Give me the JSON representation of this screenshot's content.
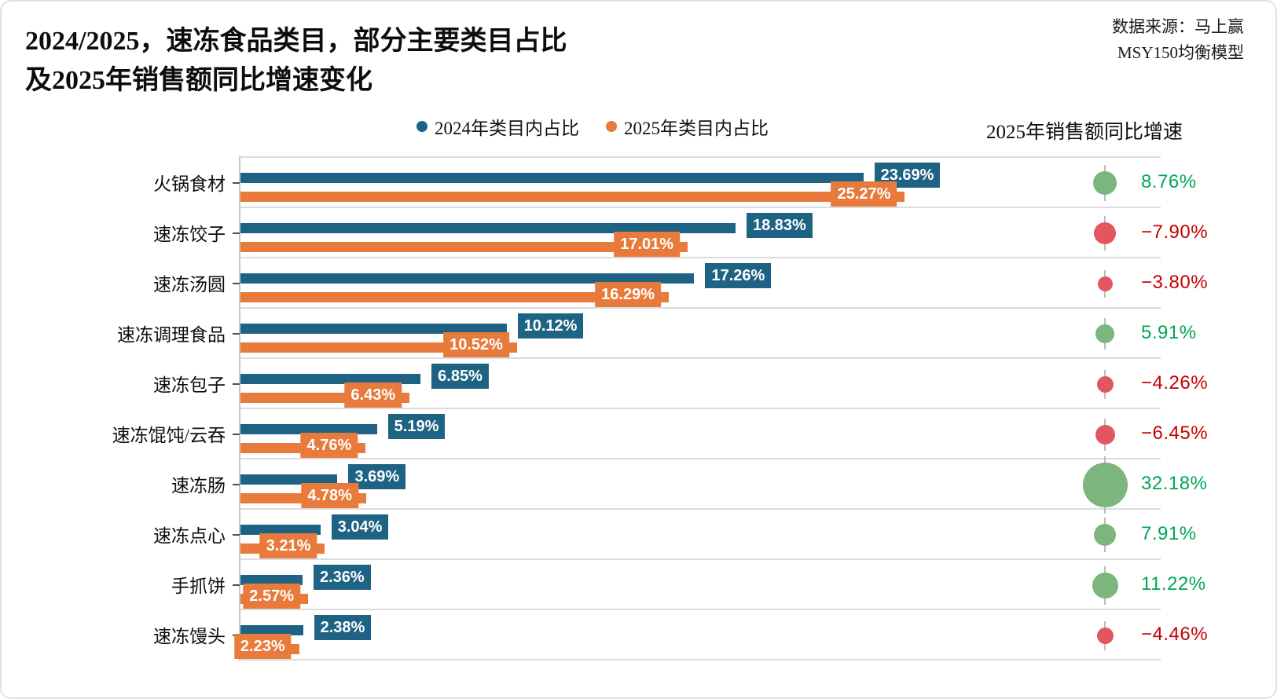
{
  "header": {
    "source_lines": [
      "数据来源：马上赢",
      "MSY150均衡模型"
    ]
  },
  "chart_data": {
    "type": "bar",
    "orientation": "horizontal",
    "title_lines": [
      "2024/2025，速冻食品类目，部分主要类目占比",
      "及2025年销售额同比增速变化"
    ],
    "categories": [
      "火锅食材",
      "速冻饺子",
      "速冻汤圆",
      "速冻调理食品",
      "速冻包子",
      "速冻馄饨/云吞",
      "速冻肠",
      "速冻点心",
      "手抓饼",
      "速冻馒头"
    ],
    "series": [
      {
        "name": "2024年类目内占比",
        "color": "#1E6383",
        "values": [
          23.69,
          18.83,
          17.26,
          10.12,
          6.85,
          5.19,
          3.69,
          3.04,
          2.36,
          2.38
        ]
      },
      {
        "name": "2025年类目内占比",
        "color": "#E87A3B",
        "values": [
          25.27,
          17.01,
          16.29,
          10.52,
          6.43,
          4.76,
          4.78,
          3.21,
          2.57,
          2.23
        ]
      }
    ],
    "bubble_series": {
      "name": "2025年销售额同比增速",
      "values": [
        8.76,
        -7.9,
        -3.8,
        5.91,
        -4.26,
        -6.45,
        32.18,
        7.91,
        11.22,
        -4.46
      ],
      "positive_bubble_color": "#7CB57E",
      "negative_bubble_color": "#E25660",
      "positive_text_color": "#00A653",
      "negative_text_color": "#C60000"
    },
    "value_suffix": "%",
    "xlim": [
      0,
      35
    ],
    "grid": "horizontal row separators",
    "legend_position": "top-center"
  }
}
